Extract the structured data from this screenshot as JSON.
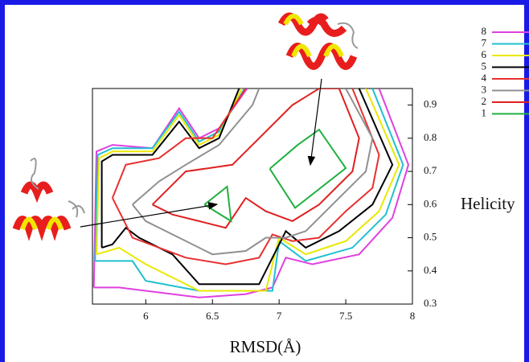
{
  "chart_data": {
    "type": "contour",
    "x_label": "RMSD(Å)",
    "y_label": "Helicity",
    "xlim": [
      5.6,
      8
    ],
    "ylim": [
      0.3,
      0.95
    ],
    "xticks": [
      6,
      6.5,
      7,
      7.5,
      8
    ],
    "yticks": [
      0.3,
      0.4,
      0.5,
      0.6,
      0.7,
      0.8,
      0.9
    ],
    "series": [
      {
        "name": "8",
        "color": "#e040e0",
        "x": [
          5.61,
          5.63,
          5.75,
          6.05,
          6.25,
          6.4,
          6.55,
          6.76,
          null,
          7.75,
          7.97,
          7.85,
          7.6,
          7.25,
          7.05,
          6.95,
          6.75,
          6.4,
          6.0,
          5.8,
          5.61
        ],
        "values": [
          0.35,
          0.76,
          0.78,
          0.77,
          0.89,
          0.8,
          0.83,
          0.95,
          null,
          0.95,
          0.72,
          0.56,
          0.45,
          0.42,
          0.44,
          0.35,
          0.33,
          0.32,
          0.34,
          0.35,
          0.35
        ]
      },
      {
        "name": "7",
        "color": "#20c0d0",
        "x": [
          5.62,
          5.64,
          5.75,
          6.05,
          6.25,
          6.4,
          6.55,
          6.74,
          null,
          7.7,
          7.93,
          7.8,
          7.55,
          7.2,
          7.0,
          6.95,
          6.4,
          6.0,
          5.9,
          5.62
        ],
        "values": [
          0.43,
          0.75,
          0.77,
          0.77,
          0.88,
          0.79,
          0.82,
          0.95,
          null,
          0.95,
          0.72,
          0.57,
          0.47,
          0.43,
          0.49,
          0.34,
          0.34,
          0.37,
          0.43,
          0.43
        ]
      },
      {
        "name": "6",
        "color": "#e8e800",
        "x": [
          5.63,
          5.65,
          5.75,
          6.05,
          6.25,
          6.4,
          6.55,
          6.72,
          null,
          7.65,
          7.9,
          7.75,
          7.5,
          7.2,
          7.0,
          6.9,
          6.4,
          6.2,
          6.0,
          5.8,
          5.63
        ],
        "values": [
          0.45,
          0.74,
          0.76,
          0.76,
          0.87,
          0.78,
          0.81,
          0.95,
          null,
          0.95,
          0.72,
          0.58,
          0.49,
          0.45,
          0.5,
          0.34,
          0.34,
          0.38,
          0.42,
          0.47,
          0.45
        ]
      },
      {
        "name": "5",
        "color": "#000000",
        "x": [
          5.67,
          5.67,
          5.75,
          6.05,
          6.25,
          6.4,
          6.55,
          6.7,
          null,
          7.6,
          7.85,
          7.7,
          7.45,
          7.2,
          7.05,
          6.85,
          6.4,
          6.2,
          5.95,
          5.85,
          5.75,
          5.67
        ],
        "values": [
          0.47,
          0.73,
          0.75,
          0.75,
          0.85,
          0.77,
          0.8,
          0.95,
          null,
          0.95,
          0.72,
          0.6,
          0.52,
          0.47,
          0.52,
          0.36,
          0.36,
          0.45,
          0.5,
          0.53,
          0.48,
          0.47
        ]
      },
      {
        "name": "4",
        "color": "#e83030",
        "x": [
          5.75,
          5.85,
          6.1,
          6.3,
          6.5,
          6.75,
          null,
          7.55,
          7.75,
          7.7,
          7.5,
          7.3,
          7.1,
          6.95,
          6.85,
          6.6,
          6.3,
          6.1,
          5.9,
          5.75
        ],
        "values": [
          0.62,
          0.72,
          0.74,
          0.8,
          0.8,
          0.95,
          null,
          0.95,
          0.75,
          0.65,
          0.58,
          0.5,
          0.49,
          0.51,
          0.44,
          0.42,
          0.44,
          0.47,
          0.5,
          0.62
        ]
      },
      {
        "name": "3",
        "color": "#909090",
        "x": [
          5.9,
          6.1,
          6.3,
          6.55,
          6.8,
          6.85,
          null,
          7.5,
          7.7,
          7.65,
          7.4,
          7.2,
          7.05,
          6.9,
          6.75,
          6.5,
          6.25,
          6.0,
          5.9
        ],
        "values": [
          0.6,
          0.67,
          0.72,
          0.78,
          0.9,
          0.95,
          null,
          0.95,
          0.8,
          0.7,
          0.6,
          0.52,
          0.5,
          0.5,
          0.46,
          0.45,
          0.5,
          0.55,
          0.6
        ]
      },
      {
        "name": "2",
        "color": "#e02020",
        "x": [
          6.05,
          6.3,
          6.65,
          6.85,
          7.1,
          7.3,
          7.45,
          7.6,
          7.55,
          7.3,
          7.1,
          6.9,
          6.75,
          6.6,
          6.4,
          6.2,
          6.05
        ],
        "values": [
          0.6,
          0.7,
          0.72,
          0.8,
          0.9,
          0.95,
          0.95,
          0.8,
          0.7,
          0.6,
          0.55,
          0.58,
          0.62,
          0.53,
          0.55,
          0.57,
          0.6
        ]
      },
      {
        "name": "1",
        "color": "#20b040",
        "x": [
          6.44,
          6.61,
          6.64,
          6.52,
          6.44,
          null,
          6.93,
          7.14,
          7.3,
          7.5,
          7.12,
          6.93
        ],
        "values": [
          0.6,
          0.654,
          0.55,
          0.58,
          0.6,
          null,
          0.708,
          0.78,
          0.826,
          0.71,
          0.59,
          0.708
        ]
      }
    ]
  }
}
